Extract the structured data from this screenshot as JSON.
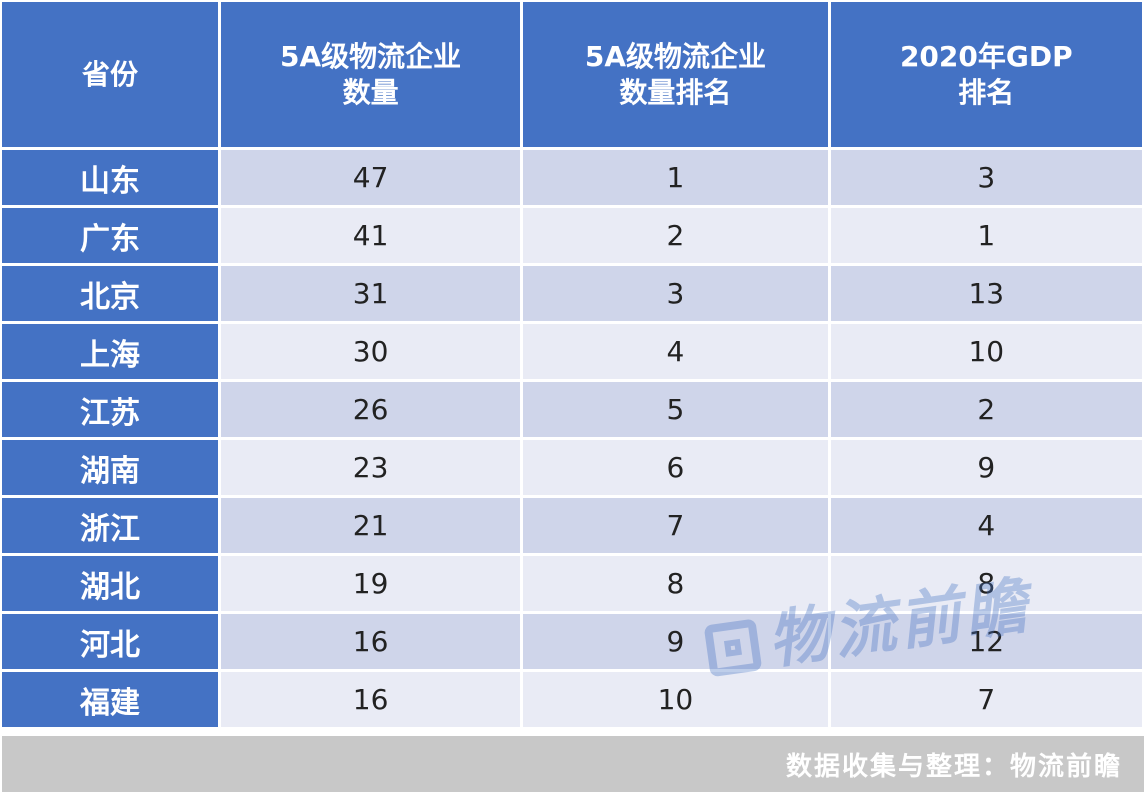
{
  "table": {
    "headers": [
      {
        "line1": "省份",
        "line2": ""
      },
      {
        "line1": "5A级物流企业",
        "line2": "数量"
      },
      {
        "line1": "5A级物流企业",
        "line2": "数量排名"
      },
      {
        "line1": "2020年GDP",
        "line2": "排名"
      }
    ],
    "rows": [
      {
        "province": "山东",
        "count": "47",
        "count_rank": "1",
        "gdp_rank": "3"
      },
      {
        "province": "广东",
        "count": "41",
        "count_rank": "2",
        "gdp_rank": "1"
      },
      {
        "province": "北京",
        "count": "31",
        "count_rank": "3",
        "gdp_rank": "13"
      },
      {
        "province": "上海",
        "count": "30",
        "count_rank": "4",
        "gdp_rank": "10"
      },
      {
        "province": "江苏",
        "count": "26",
        "count_rank": "5",
        "gdp_rank": "2"
      },
      {
        "province": "湖南",
        "count": "23",
        "count_rank": "6",
        "gdp_rank": "9"
      },
      {
        "province": "浙江",
        "count": "21",
        "count_rank": "7",
        "gdp_rank": "4"
      },
      {
        "province": "湖北",
        "count": "19",
        "count_rank": "8",
        "gdp_rank": "8"
      },
      {
        "province": "河北",
        "count": "16",
        "count_rank": "9",
        "gdp_rank": "12"
      },
      {
        "province": "福建",
        "count": "16",
        "count_rank": "10",
        "gdp_rank": "7"
      }
    ]
  },
  "footer": {
    "source": "数据收集与整理：物流前瞻"
  },
  "watermark": {
    "text": "物流前瞻"
  },
  "colors": {
    "header_bg": "#4472c4",
    "row_odd": "#cfd5ea",
    "row_even": "#e9ebf5",
    "footer_bg": "#c8c8c8"
  }
}
